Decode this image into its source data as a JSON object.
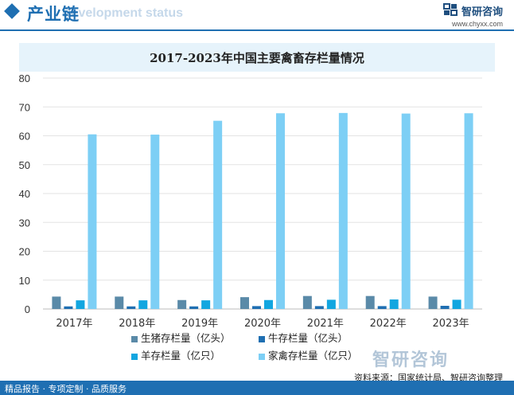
{
  "header": {
    "title": "产业链",
    "subtitle": "Development status",
    "logo_name": "智研咨询",
    "logo_url": "www.chyxx.com"
  },
  "colors": {
    "accent": "#1f6fb2",
    "title_bar": "#e6f3fb",
    "footer": "#1f6fb2"
  },
  "watermark": {
    "text": "智研咨询"
  },
  "footer": {
    "left": "精品报告 · 专项定制 · 品质服务",
    "source": "资料来源：国家统计局、智研咨询整理"
  },
  "chart_data": {
    "type": "bar",
    "title": "2017-2023年中国主要禽畜存栏量情况",
    "xlabel": "",
    "ylabel": "",
    "categories": [
      "2017年",
      "2018年",
      "2019年",
      "2020年",
      "2021年",
      "2022年",
      "2023年"
    ],
    "ylim": [
      0,
      80
    ],
    "yticks": [
      0,
      10,
      20,
      30,
      40,
      50,
      60,
      70,
      80
    ],
    "grid": true,
    "legend_position": "bottom",
    "series": [
      {
        "name": "生猪存栏量（亿头）",
        "color": "#5a8aa8",
        "values": [
          4.3,
          4.3,
          3.1,
          4.1,
          4.5,
          4.5,
          4.3
        ]
      },
      {
        "name": "牛存栏量（亿头）",
        "color": "#1f6fb2",
        "values": [
          0.9,
          0.9,
          0.9,
          1.0,
          1.0,
          1.0,
          1.1
        ]
      },
      {
        "name": "羊存栏量（亿只）",
        "color": "#12a6e0",
        "values": [
          3.0,
          3.0,
          3.0,
          3.1,
          3.2,
          3.3,
          3.2
        ]
      },
      {
        "name": "家禽存栏量（亿只）",
        "color": "#7dcff5",
        "values": [
          60.5,
          60.4,
          65.2,
          67.8,
          67.9,
          67.7,
          67.8
        ]
      }
    ]
  }
}
